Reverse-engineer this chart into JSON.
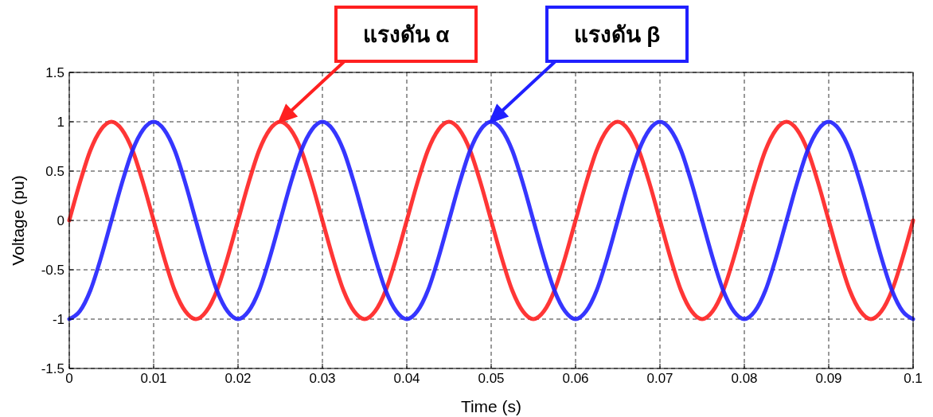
{
  "chart_data": {
    "type": "line",
    "xlabel": "Time (s)",
    "ylabel": "Voltage (pu)",
    "x": [
      0,
      0.00125,
      0.0025,
      0.00375,
      0.005,
      0.00625,
      0.0075,
      0.00875,
      0.01,
      0.01125,
      0.0125,
      0.01375,
      0.015,
      0.01625,
      0.0175,
      0.01875,
      0.02,
      0.02125,
      0.0225,
      0.02375,
      0.025,
      0.02625,
      0.0275,
      0.02875,
      0.03,
      0.03125,
      0.0325,
      0.03375,
      0.035,
      0.03625,
      0.0375,
      0.03875,
      0.04,
      0.04125,
      0.0425,
      0.04375,
      0.045,
      0.04625,
      0.0475,
      0.04875,
      0.05,
      0.05125,
      0.0525,
      0.05375,
      0.055,
      0.05625,
      0.0575,
      0.05875,
      0.06,
      0.06125,
      0.0625,
      0.06375,
      0.065,
      0.06625,
      0.0675,
      0.06875,
      0.07,
      0.07125,
      0.0725,
      0.07375,
      0.075,
      0.07625,
      0.0775,
      0.07875,
      0.08,
      0.08125,
      0.0825,
      0.08375,
      0.085,
      0.08625,
      0.0875,
      0.08875,
      0.09,
      0.09125,
      0.0925,
      0.09375,
      0.095,
      0.09625,
      0.0975,
      0.09875,
      0.1
    ],
    "series": [
      {
        "color": "#ff2020",
        "values": [
          0,
          0.38,
          0.71,
          0.92,
          1,
          0.92,
          0.71,
          0.38,
          0,
          -0.38,
          -0.71,
          -0.92,
          -1,
          -0.92,
          -0.71,
          -0.38,
          0,
          0.38,
          0.71,
          0.92,
          1,
          0.92,
          0.71,
          0.38,
          0,
          -0.38,
          -0.71,
          -0.92,
          -1,
          -0.92,
          -0.71,
          -0.38,
          0,
          0.38,
          0.71,
          0.92,
          1,
          0.92,
          0.71,
          0.38,
          0,
          -0.38,
          -0.71,
          -0.92,
          -1,
          -0.92,
          -0.71,
          -0.38,
          0,
          0.38,
          0.71,
          0.92,
          1,
          0.92,
          0.71,
          0.38,
          0,
          -0.38,
          -0.71,
          -0.92,
          -1,
          -0.92,
          -0.71,
          -0.38,
          0,
          0.38,
          0.71,
          0.92,
          1,
          0.92,
          0.71,
          0.38,
          0,
          -0.38,
          -0.71,
          -0.92,
          -1,
          -0.92,
          -0.71,
          -0.38,
          0
        ]
      },
      {
        "color": "#2020ff",
        "values": [
          -1,
          -0.92,
          -0.71,
          -0.38,
          0,
          0.38,
          0.71,
          0.92,
          1,
          0.92,
          0.71,
          0.38,
          0,
          -0.38,
          -0.71,
          -0.92,
          -1,
          -0.92,
          -0.71,
          -0.38,
          0,
          0.38,
          0.71,
          0.92,
          1,
          0.92,
          0.71,
          0.38,
          0,
          -0.38,
          -0.71,
          -0.92,
          -1,
          -0.92,
          -0.71,
          -0.38,
          0,
          0.38,
          0.71,
          0.92,
          1,
          0.92,
          0.71,
          0.38,
          0,
          -0.38,
          -0.71,
          -0.92,
          -1,
          -0.92,
          -0.71,
          -0.38,
          0,
          0.38,
          0.71,
          0.92,
          1,
          0.92,
          0.71,
          0.38,
          0,
          -0.38,
          -0.71,
          -0.92,
          -1,
          -0.92,
          -0.71,
          -0.38,
          0,
          0.38,
          0.71,
          0.92,
          1,
          0.92,
          0.71,
          0.38,
          0,
          -0.38,
          -0.71,
          -0.92,
          -1
        ]
      }
    ],
    "xlim": [
      0,
      0.1
    ],
    "xticks": [
      0,
      0.01,
      0.02,
      0.03,
      0.04,
      0.05,
      0.06,
      0.07,
      0.08,
      0.09,
      0.1
    ],
    "ylim": [
      -1.5,
      1.5
    ],
    "yticks": [
      -1.5,
      -1,
      -0.5,
      0,
      0.5,
      1,
      1.5
    ],
    "grid": true,
    "line_style": "solid",
    "marker": "none",
    "annotations": [
      "แรงดัน α",
      "แรงดัน β"
    ]
  }
}
